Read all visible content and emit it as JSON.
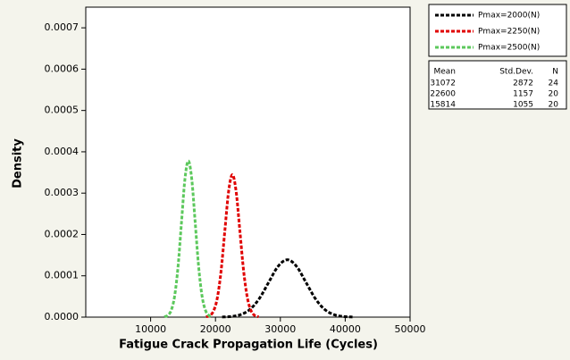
{
  "chart_data": {
    "type": "line",
    "xlabel": "Fatigue Crack Propagation Life (Cycles)",
    "ylabel": "Density",
    "xlim": [
      0,
      50000
    ],
    "xticks": [
      10000,
      20000,
      30000,
      40000,
      50000
    ],
    "ylim": [
      0,
      0.00075
    ],
    "yticks": [
      {
        "value": 0,
        "label": "0.0000"
      },
      {
        "value": 0.0001,
        "label": "0.0001"
      },
      {
        "value": 0.0002,
        "label": "0.0002"
      },
      {
        "value": 0.0003,
        "label": "0.0003"
      },
      {
        "value": 0.0004,
        "label": "0.0004"
      },
      {
        "value": 0.0005,
        "label": "0.0005"
      },
      {
        "value": 0.0006,
        "label": "0.0006"
      },
      {
        "value": 0.0007,
        "label": "0.0007"
      }
    ],
    "series": [
      {
        "name": "Pmax=2000(N)",
        "color": "#000000",
        "x": [
          21020,
          22456,
          23892,
          25328,
          26764,
          28200,
          29636,
          31072,
          32508,
          33944,
          35380,
          36816,
          38252,
          39688,
          41124
        ],
        "values": [
          3e-07,
          1.5e-06,
          6.1e-06,
          1.88e-05,
          4.51e-05,
          8.42e-05,
          0.0001226,
          0.0001389,
          0.0001226,
          8.42e-05,
          4.51e-05,
          1.88e-05,
          6.1e-06,
          1.5e-06,
          3e-07
        ]
      },
      {
        "name": "Pmax=2250(N)",
        "color": "#e00000",
        "x": [
          18551,
          19129,
          19708,
          20286,
          20864,
          21443,
          22022,
          22600,
          23179,
          23757,
          24336,
          24914,
          25493,
          26071,
          26650
        ],
        "values": [
          8e-07,
          3.8e-06,
          1.51e-05,
          4.67e-05,
          0.000112,
          0.0002091,
          0.0003043,
          0.0003448,
          0.0003043,
          0.0002091,
          0.000112,
          4.67e-05,
          1.51e-05,
          3.8e-06,
          8e-07
        ]
      },
      {
        "name": "Pmax=2500(N)",
        "color": "#5cc85c",
        "x": [
          12121,
          12649,
          13176,
          13704,
          14231,
          14759,
          15286,
          15814,
          16342,
          16869,
          17397,
          17924,
          18452,
          18979,
          19507
        ],
        "values": [
          8e-07,
          4.2e-06,
          1.66e-05,
          5.12e-05,
          0.0001228,
          0.0002293,
          0.0003337,
          0.0003781,
          0.0003337,
          0.0002293,
          0.0001228,
          5.12e-05,
          1.66e-05,
          4.2e-06,
          8e-07
        ]
      }
    ],
    "legend_position": "right",
    "stats_table": {
      "columns": [
        "Mean",
        "Std.Dev.",
        "N"
      ],
      "rows": [
        [
          31072,
          2872,
          24
        ],
        [
          22600,
          1157,
          20
        ],
        [
          15814,
          1055,
          20
        ]
      ]
    }
  }
}
